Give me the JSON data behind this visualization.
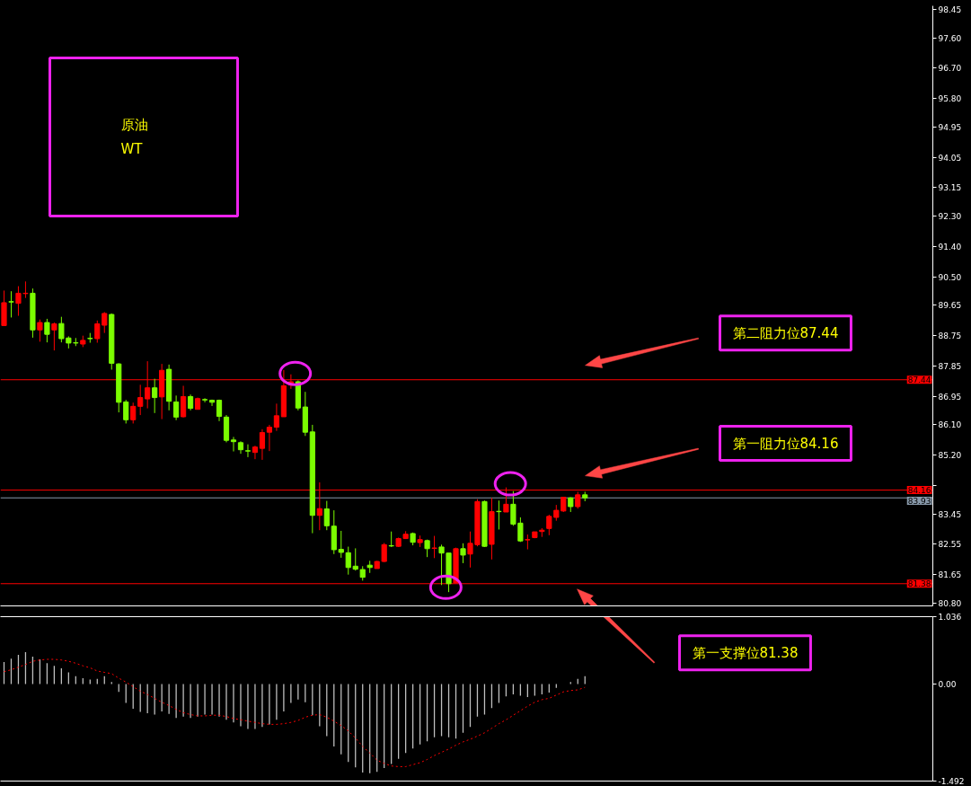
{
  "chart_data": [
    {
      "type": "candlestick",
      "categories": [
        null,
        null,
        null,
        null,
        null,
        null,
        null,
        null,
        null,
        null,
        null,
        null,
        null,
        null,
        null,
        null,
        null,
        null,
        null,
        null,
        null,
        null,
        null,
        null,
        null,
        null,
        null,
        null,
        null,
        null,
        null,
        null,
        null,
        null,
        null,
        null,
        null,
        null,
        null,
        null,
        null,
        null,
        null,
        null,
        null,
        null,
        null,
        null,
        null,
        null,
        null,
        null,
        null,
        null,
        null,
        null,
        null,
        null,
        null,
        null,
        null,
        null,
        null,
        null,
        null,
        null,
        null,
        null,
        null,
        null,
        null,
        null,
        null,
        null,
        null,
        null,
        null,
        null,
        null,
        null,
        null,
        null,
        null,
        null,
        null,
        null,
        null,
        null,
        null,
        null,
        null,
        null,
        null,
        null,
        null,
        null,
        null,
        null,
        null,
        null,
        null,
        null,
        null,
        null,
        null,
        null,
        null,
        null,
        null,
        null,
        null,
        null,
        null,
        null,
        null,
        null,
        null,
        null,
        null,
        null,
        null,
        null,
        null,
        null,
        null,
        null,
        null,
        null,
        null,
        null
      ],
      "ohlc": [
        [
          89.05,
          90.09,
          89.05,
          89.73
        ],
        [
          89.76,
          90.07,
          89.29,
          89.75
        ],
        [
          89.71,
          90.22,
          89.34,
          90.01
        ],
        [
          90.0,
          90.36,
          89.87,
          90.01
        ],
        [
          90.01,
          90.15,
          88.69,
          88.92
        ],
        [
          88.92,
          89.23,
          88.57,
          89.14
        ],
        [
          89.14,
          89.25,
          88.55,
          88.79
        ],
        [
          88.92,
          89.14,
          88.31,
          89.1
        ],
        [
          89.11,
          89.31,
          88.55,
          88.66
        ],
        [
          88.68,
          88.73,
          88.37,
          88.53
        ],
        [
          88.54,
          88.68,
          88.44,
          88.53
        ],
        [
          88.5,
          88.75,
          88.41,
          88.61
        ],
        [
          88.67,
          88.83,
          88.54,
          88.66
        ],
        [
          88.66,
          89.2,
          88.54,
          89.1
        ],
        [
          89.06,
          89.45,
          88.83,
          89.41
        ],
        [
          89.38,
          89.41,
          87.74,
          87.93
        ],
        [
          87.91,
          87.93,
          86.47,
          86.77
        ],
        [
          86.78,
          86.84,
          86.14,
          86.25
        ],
        [
          86.25,
          86.76,
          86.14,
          86.65
        ],
        [
          86.65,
          87.29,
          86.39,
          86.91
        ],
        [
          86.87,
          87.99,
          86.59,
          87.2
        ],
        [
          87.2,
          87.47,
          86.45,
          86.91
        ],
        [
          86.93,
          87.91,
          86.27,
          87.72
        ],
        [
          87.75,
          87.89,
          86.53,
          86.8
        ],
        [
          86.78,
          86.97,
          86.24,
          86.33
        ],
        [
          86.34,
          87.26,
          86.32,
          86.94
        ],
        [
          86.94,
          87.0,
          86.53,
          86.59
        ],
        [
          86.56,
          86.91,
          86.56,
          86.88
        ],
        [
          86.85,
          86.89,
          86.77,
          86.84
        ],
        [
          86.83,
          86.85,
          86.66,
          86.77
        ],
        [
          86.83,
          86.85,
          86.21,
          86.35
        ],
        [
          86.33,
          86.39,
          85.58,
          85.64
        ],
        [
          85.65,
          85.74,
          85.31,
          85.6
        ],
        [
          85.57,
          85.61,
          85.24,
          85.36
        ],
        [
          85.33,
          85.52,
          85.14,
          85.32
        ],
        [
          85.28,
          85.48,
          85.08,
          85.44
        ],
        [
          85.4,
          85.97,
          85.06,
          85.87
        ],
        [
          85.88,
          86.1,
          85.32,
          86.03
        ],
        [
          86.03,
          86.73,
          85.92,
          86.37
        ],
        [
          86.34,
          87.73,
          86.34,
          87.26
        ],
        [
          87.28,
          87.6,
          87.17,
          87.38
        ],
        [
          87.38,
          87.42,
          86.53,
          86.6
        ],
        [
          86.63,
          87.08,
          85.77,
          85.88
        ],
        [
          85.89,
          86.1,
          82.88,
          83.41
        ],
        [
          83.41,
          84.39,
          82.97,
          83.61
        ],
        [
          83.6,
          83.84,
          82.97,
          83.1
        ],
        [
          83.09,
          83.56,
          82.26,
          82.39
        ],
        [
          82.4,
          82.95,
          82.15,
          82.31
        ],
        [
          82.3,
          82.48,
          81.65,
          81.86
        ],
        [
          81.9,
          82.43,
          81.77,
          81.81
        ],
        [
          81.8,
          81.9,
          81.47,
          81.57
        ],
        [
          81.93,
          82.06,
          81.7,
          81.86
        ],
        [
          81.83,
          82.06,
          81.83,
          82.04
        ],
        [
          82.04,
          82.59,
          82.02,
          82.54
        ],
        [
          82.51,
          82.93,
          82.47,
          82.5
        ],
        [
          82.49,
          82.75,
          82.47,
          82.72
        ],
        [
          82.72,
          82.94,
          82.71,
          82.85
        ],
        [
          82.87,
          82.9,
          82.52,
          82.61
        ],
        [
          82.6,
          82.81,
          82.47,
          82.69
        ],
        [
          82.66,
          82.69,
          82.17,
          82.42
        ],
        [
          82.43,
          82.8,
          82.14,
          82.44
        ],
        [
          82.47,
          82.54,
          81.34,
          82.29
        ],
        [
          82.29,
          82.29,
          81.13,
          81.38
        ],
        [
          81.4,
          82.45,
          81.4,
          82.42
        ],
        [
          82.42,
          82.58,
          81.99,
          82.23
        ],
        [
          82.26,
          82.93,
          81.86,
          82.58
        ],
        [
          82.54,
          83.89,
          82.49,
          83.82
        ],
        [
          83.82,
          83.85,
          82.47,
          82.49
        ],
        [
          82.55,
          83.93,
          82.1,
          83.52
        ],
        [
          83.53,
          83.85,
          82.99,
          83.52
        ],
        [
          83.51,
          84.24,
          83.51,
          83.74
        ],
        [
          83.74,
          84.13,
          83.1,
          83.15
        ],
        [
          83.18,
          83.35,
          82.62,
          82.65
        ],
        [
          82.68,
          82.84,
          82.4,
          82.69
        ],
        [
          82.75,
          82.92,
          82.73,
          82.92
        ],
        [
          82.93,
          83.03,
          82.77,
          82.97
        ],
        [
          83.02,
          83.43,
          82.82,
          83.38
        ],
        [
          83.35,
          83.72,
          83.25,
          83.56
        ],
        [
          83.54,
          83.95,
          83.51,
          83.95
        ],
        [
          83.93,
          83.95,
          83.51,
          83.67
        ],
        [
          83.67,
          84.11,
          83.61,
          84.02
        ],
        [
          84.02,
          84.11,
          83.83,
          83.93
        ],
        null,
        null,
        null,
        null,
        null,
        null,
        null,
        null,
        null,
        null,
        null,
        null,
        null,
        null,
        null,
        null,
        null,
        null,
        null,
        null,
        null,
        null,
        null,
        null,
        null,
        null,
        null,
        null,
        null,
        null,
        null,
        null,
        null,
        null,
        null,
        null,
        null,
        null,
        null,
        null,
        null,
        null,
        null,
        null,
        null,
        null,
        null,
        null
      ],
      "colors": [
        "#ff0000",
        "#7cfc00",
        "#ff0000",
        "#ff0000",
        "#7cfc00",
        "#ff0000",
        "#7cfc00",
        "#ff0000",
        "#7cfc00",
        "#7cfc00",
        "#7cfc00",
        "#ff0000",
        "#7cfc00",
        "#ff0000",
        "#ff0000",
        "#7cfc00",
        "#7cfc00",
        "#7cfc00",
        "#ff0000",
        "#ff0000",
        "#ff0000",
        "#7cfc00",
        "#ff0000",
        "#7cfc00",
        "#7cfc00",
        "#ff0000",
        "#7cfc00",
        "#ff0000",
        "#7cfc00",
        "#7cfc00",
        "#7cfc00",
        "#7cfc00",
        "#7cfc00",
        "#7cfc00",
        "#7cfc00",
        "#ff0000",
        "#ff0000",
        "#ff0000",
        "#ff0000",
        "#ff0000",
        "#ff0000",
        "#7cfc00",
        "#7cfc00",
        "#7cfc00",
        "#ff0000",
        "#7cfc00",
        "#7cfc00",
        "#7cfc00",
        "#7cfc00",
        "#7cfc00",
        "#7cfc00",
        "#7cfc00",
        "#ff0000",
        "#ff0000",
        "#7cfc00",
        "#ff0000",
        "#ff0000",
        "#7cfc00",
        "#ff0000",
        "#7cfc00",
        "#ff0000",
        "#7cfc00",
        "#7cfc00",
        "#ff0000",
        "#7cfc00",
        "#ff0000",
        "#ff0000",
        "#7cfc00",
        "#ff0000",
        "#7cfc00",
        "#ff0000",
        "#7cfc00",
        "#7cfc00",
        "#ff0000",
        "#ff0000",
        "#ff0000",
        "#ff0000",
        "#ff0000",
        "#ff0000",
        "#7cfc00",
        "#ff0000",
        "#7cfc00",
        null,
        null,
        null,
        null,
        null,
        null,
        null,
        null,
        null,
        null,
        null,
        null,
        null,
        null,
        null,
        null,
        null,
        null,
        null,
        null,
        null,
        null,
        null,
        null,
        null,
        null,
        null,
        null,
        null,
        null,
        null,
        null,
        null,
        null,
        null,
        null,
        null,
        null,
        null,
        null,
        null,
        null,
        null,
        null,
        null,
        null,
        null,
        null
      ],
      "ylim": [
        80.72,
        98.55
      ],
      "yticks": [
        98.45,
        {
          "value": 97.6,
          "label": "97.60"
        },
        {
          "value": 96.7,
          "label": "96.70"
        },
        {
          "value": 95.8,
          "label": "95.80"
        },
        94.95,
        94.05,
        93.15,
        {
          "value": 92.3,
          "label": "92.30"
        },
        {
          "value": 91.4,
          "label": "91.40"
        },
        {
          "value": 90.5,
          "label": "90.50"
        },
        89.65,
        88.75,
        87.85,
        86.95,
        {
          "value": 86.1,
          "label": "86.10"
        },
        {
          "value": 85.2,
          "label": "85.20"
        },
        {
          "value": 84.3,
          "label": null
        },
        83.45,
        82.55,
        81.65,
        {
          "value": 80.8,
          "label": "80.80"
        }
      ],
      "tick_labels": "y",
      "ref_lines": [
        {
          "axis": "y",
          "value": 87.44,
          "label": "87.44",
          "color": "#ff0000"
        },
        {
          "axis": "y",
          "value": 84.16,
          "label": "84.16",
          "color": "#ff0000"
        },
        {
          "axis": "y",
          "value": 83.93,
          "label": "83.93",
          "color": "#8899aa"
        },
        {
          "axis": "y",
          "value": 81.38,
          "label": "81.38",
          "color": "#ff0000"
        }
      ],
      "annotations": [
        "原油\nWT",
        {
          "text": "第二阻力位87.44",
          "y": 87.44
        },
        {
          "text": "第一阻力位84.16",
          "y": 84.16
        },
        "第一支撑位81.38"
      ]
    },
    {
      "type": "bar",
      "categories": [
        null,
        null,
        null,
        null,
        null,
        null,
        null,
        null,
        null,
        null,
        null,
        null,
        null,
        null,
        null,
        null,
        null,
        null,
        null,
        null,
        null,
        null,
        null,
        null,
        null,
        null,
        null,
        null,
        null,
        null,
        null,
        null,
        null,
        null,
        null,
        null,
        null,
        null,
        null,
        null,
        null,
        null,
        null,
        null,
        null,
        null,
        null,
        null,
        null,
        null,
        null,
        null,
        null,
        null,
        null,
        null,
        null,
        null,
        null,
        null,
        null,
        null,
        null,
        null,
        null,
        null,
        null,
        null,
        null,
        null,
        null,
        null,
        null,
        null,
        null,
        null,
        null,
        null,
        null,
        null,
        null,
        null,
        null,
        null,
        null,
        null,
        null,
        null,
        null,
        null,
        null,
        null,
        null,
        null,
        null,
        null,
        null,
        null,
        null,
        null,
        null,
        null,
        null,
        null,
        null,
        null,
        null,
        null,
        null,
        null,
        null,
        null,
        null,
        null,
        null,
        null,
        null,
        null,
        null,
        null,
        null,
        null,
        null,
        null,
        null,
        null,
        null,
        null,
        null,
        null
      ],
      "series": [
        {
          "type": "bar",
          "color": "#c0c0c0",
          "values": [
            0.34,
            0.39,
            0.45,
            0.49,
            0.42,
            0.38,
            0.32,
            0.28,
            0.24,
            0.18,
            0.12,
            0.09,
            0.07,
            0.08,
            0.12,
            0.03,
            -0.12,
            -0.29,
            -0.38,
            -0.43,
            -0.45,
            -0.47,
            -0.42,
            -0.46,
            -0.52,
            -0.5,
            -0.52,
            -0.5,
            -0.47,
            -0.47,
            -0.5,
            -0.55,
            -0.59,
            -0.65,
            -0.69,
            -0.69,
            -0.66,
            -0.62,
            -0.55,
            -0.42,
            -0.29,
            -0.24,
            -0.28,
            -0.48,
            -0.65,
            -0.8,
            -0.96,
            -1.08,
            -1.2,
            -1.28,
            -1.36,
            -1.37,
            -1.35,
            -1.29,
            -1.23,
            -1.15,
            -1.06,
            -0.99,
            -0.93,
            -0.88,
            -0.82,
            -0.8,
            -0.82,
            -0.84,
            -0.75,
            -0.66,
            -0.5,
            -0.47,
            -0.37,
            -0.29,
            -0.19,
            -0.16,
            -0.18,
            -0.2,
            -0.18,
            -0.16,
            -0.13,
            -0.06,
            null,
            0.03,
            0.08,
            0.12,
            null,
            null,
            null,
            null,
            null,
            null,
            null,
            null,
            null,
            null,
            null,
            null,
            null,
            null,
            null,
            null,
            null,
            null,
            null,
            null,
            null,
            null,
            null,
            null,
            null,
            null,
            null,
            null,
            null,
            null,
            null,
            null,
            null,
            null,
            null,
            null,
            null,
            null,
            null,
            null,
            null,
            null,
            null,
            null,
            null,
            null,
            null,
            null
          ]
        },
        {
          "type": "line",
          "color": "#ff0000",
          "values": [
            0.19,
            0.22,
            0.26,
            0.3,
            0.35,
            0.37,
            0.38,
            0.38,
            0.37,
            0.35,
            0.32,
            0.28,
            0.25,
            0.2,
            0.18,
            0.16,
            0.09,
            0.03,
            -0.04,
            -0.11,
            -0.16,
            -0.22,
            -0.28,
            -0.33,
            -0.39,
            -0.44,
            -0.47,
            -0.49,
            -0.49,
            -0.48,
            -0.48,
            -0.5,
            -0.53,
            -0.55,
            -0.57,
            -0.59,
            -0.61,
            -0.62,
            -0.62,
            -0.61,
            -0.59,
            -0.56,
            -0.51,
            -0.48,
            -0.47,
            -0.51,
            -0.57,
            -0.64,
            -0.72,
            -0.83,
            -0.96,
            -1.06,
            -1.17,
            -1.22,
            -1.26,
            -1.27,
            -1.27,
            -1.24,
            -1.21,
            -1.16,
            -1.1,
            -1.05,
            -1.0,
            -0.94,
            -0.89,
            -0.85,
            -0.8,
            -0.75,
            -0.68,
            -0.61,
            -0.55,
            -0.48,
            -0.41,
            -0.34,
            -0.28,
            -0.24,
            -0.22,
            -0.17,
            -0.12,
            -0.1,
            -0.09,
            -0.05,
            null,
            null,
            null,
            null,
            null,
            null,
            null,
            null,
            null,
            null,
            null,
            null,
            null,
            null,
            null,
            null,
            null,
            null,
            null,
            null,
            null,
            null,
            null,
            null,
            null,
            null,
            null,
            null,
            null,
            null,
            null,
            null,
            null,
            null,
            null,
            null,
            null,
            null,
            null,
            null,
            null,
            null,
            null,
            null,
            null,
            null,
            null,
            null
          ]
        }
      ],
      "line_style": "dotted",
      "ylim": [
        -1.492,
        1.036
      ],
      "yticks": [
        1.036,
        {
          "value": 0,
          "label": "0.00"
        },
        -1.492
      ],
      "tick_labels": "y"
    }
  ]
}
